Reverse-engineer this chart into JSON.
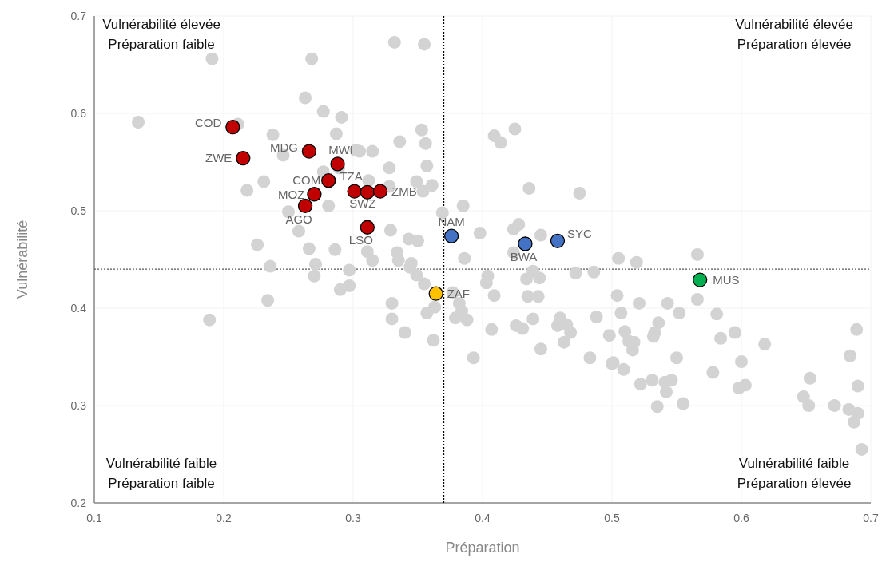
{
  "chart_data": {
    "type": "scatter",
    "xlabel": "Préparation",
    "ylabel": "Vulnérabilité",
    "xlim": [
      0.1,
      0.7
    ],
    "xticks": [
      0.1,
      0.2,
      0.3,
      0.4,
      0.5,
      0.6,
      0.7
    ],
    "ylim": [
      0.2,
      0.7
    ],
    "yticks": [
      0.2,
      0.3,
      0.4,
      0.5,
      0.6,
      0.7
    ],
    "grid": true,
    "marker": "circle",
    "series": [
      {
        "color": "#d3d3d3",
        "x": [
          0.191,
          0.268,
          0.263,
          0.134,
          0.211,
          0.277,
          0.291,
          0.238,
          0.287,
          0.246,
          0.302,
          0.277,
          0.289,
          0.231,
          0.218,
          0.281,
          0.25,
          0.258,
          0.226,
          0.266,
          0.286,
          0.332,
          0.355,
          0.353,
          0.336,
          0.356,
          0.305,
          0.315,
          0.328,
          0.357,
          0.312,
          0.328,
          0.349,
          0.361,
          0.354,
          0.409,
          0.414,
          0.425,
          0.436,
          0.475,
          0.385,
          0.369,
          0.329,
          0.398,
          0.424,
          0.428,
          0.445,
          0.343,
          0.35,
          0.311,
          0.334,
          0.386,
          0.424,
          0.315,
          0.335,
          0.345,
          0.505,
          0.519,
          0.566,
          0.236,
          0.271,
          0.27,
          0.297,
          0.29,
          0.297,
          0.234,
          0.189,
          0.344,
          0.349,
          0.355,
          0.404,
          0.403,
          0.439,
          0.434,
          0.444,
          0.472,
          0.486,
          0.33,
          0.363,
          0.357,
          0.377,
          0.382,
          0.409,
          0.435,
          0.443,
          0.33,
          0.34,
          0.362,
          0.379,
          0.384,
          0.388,
          0.393,
          0.407,
          0.426,
          0.431,
          0.439,
          0.445,
          0.46,
          0.458,
          0.465,
          0.468,
          0.463,
          0.488,
          0.483,
          0.498,
          0.5,
          0.504,
          0.521,
          0.543,
          0.566,
          0.507,
          0.552,
          0.581,
          0.51,
          0.513,
          0.517,
          0.516,
          0.536,
          0.533,
          0.532,
          0.584,
          0.595,
          0.618,
          0.501,
          0.509,
          0.55,
          0.578,
          0.6,
          0.522,
          0.531,
          0.541,
          0.546,
          0.542,
          0.535,
          0.555,
          0.598,
          0.603,
          0.653,
          0.648,
          0.652,
          0.672,
          0.683,
          0.69,
          0.687,
          0.689,
          0.684,
          0.69,
          0.693
        ],
        "values": [
          0.656,
          0.656,
          0.616,
          0.591,
          0.589,
          0.602,
          0.596,
          0.578,
          0.579,
          0.557,
          0.562,
          0.54,
          0.544,
          0.53,
          0.521,
          0.505,
          0.499,
          0.479,
          0.465,
          0.461,
          0.46,
          0.673,
          0.671,
          0.583,
          0.571,
          0.569,
          0.561,
          0.561,
          0.544,
          0.546,
          0.531,
          0.525,
          0.53,
          0.526,
          0.52,
          0.577,
          0.57,
          0.584,
          0.523,
          0.518,
          0.505,
          0.498,
          0.48,
          0.477,
          0.481,
          0.486,
          0.475,
          0.471,
          0.469,
          0.458,
          0.457,
          0.451,
          0.457,
          0.449,
          0.449,
          0.446,
          0.451,
          0.447,
          0.455,
          0.443,
          0.445,
          0.433,
          0.439,
          0.419,
          0.423,
          0.408,
          0.388,
          0.442,
          0.434,
          0.425,
          0.433,
          0.426,
          0.438,
          0.43,
          0.431,
          0.436,
          0.437,
          0.405,
          0.401,
          0.395,
          0.416,
          0.405,
          0.413,
          0.412,
          0.412,
          0.389,
          0.375,
          0.367,
          0.39,
          0.397,
          0.388,
          0.349,
          0.378,
          0.382,
          0.379,
          0.389,
          0.358,
          0.39,
          0.382,
          0.383,
          0.375,
          0.365,
          0.391,
          0.349,
          0.372,
          0.343,
          0.413,
          0.405,
          0.405,
          0.409,
          0.395,
          0.395,
          0.394,
          0.376,
          0.366,
          0.365,
          0.357,
          0.385,
          0.375,
          0.371,
          0.369,
          0.375,
          0.363,
          0.344,
          0.337,
          0.349,
          0.334,
          0.345,
          0.322,
          0.326,
          0.324,
          0.326,
          0.314,
          0.299,
          0.302,
          0.318,
          0.321,
          0.328,
          0.309,
          0.3,
          0.3,
          0.296,
          0.292,
          0.283,
          0.378,
          0.351,
          0.32,
          0.255
        ]
      },
      {
        "color": "#c00000",
        "x": [
          0.207,
          0.215,
          0.266,
          0.288,
          0.281,
          0.301,
          0.27,
          0.263,
          0.311,
          0.321,
          0.311
        ],
        "values": [
          0.586,
          0.554,
          0.561,
          0.548,
          0.531,
          0.52,
          0.517,
          0.505,
          0.519,
          0.52,
          0.483
        ]
      },
      {
        "color": "#4472c4",
        "x": [
          0.376,
          0.433,
          0.458
        ],
        "values": [
          0.474,
          0.466,
          0.469
        ]
      },
      {
        "color": "#ffc000",
        "x": [
          0.364
        ],
        "values": [
          0.415
        ]
      },
      {
        "color": "#00b050",
        "x": [
          0.568
        ],
        "values": [
          0.429
        ]
      }
    ],
    "ref_lines": [
      {
        "axis": "x",
        "value": 0.37,
        "color": "#000000",
        "line_style": "dotted"
      },
      {
        "axis": "y",
        "value": 0.44,
        "color": "#555555",
        "line_style": "dotted"
      }
    ],
    "annotations": [
      "Vulnérabilité élevée\nPréparation faible",
      "Vulnérabilité élevée\nPréparation élevée",
      "Vulnérabilité faible\nPréparation faible",
      "Vulnérabilité faible\nPréparation élevée",
      {
        "text": "COD",
        "x": 0.207,
        "y": 0.586
      },
      {
        "text": "ZWE",
        "x": 0.215,
        "y": 0.554
      },
      {
        "text": "MDG",
        "x": 0.266,
        "y": 0.561
      },
      {
        "text": "MWI",
        "x": 0.288,
        "y": 0.548
      },
      {
        "text": "COM",
        "x": 0.281,
        "y": 0.531
      },
      {
        "text": "TZA",
        "x": 0.301,
        "y": 0.52
      },
      {
        "text": "MOZ",
        "x": 0.27,
        "y": 0.517
      },
      {
        "text": "AGO",
        "x": 0.263,
        "y": 0.505
      },
      {
        "text": "SWZ",
        "x": 0.311,
        "y": 0.519
      },
      {
        "text": "ZMB",
        "x": 0.321,
        "y": 0.52
      },
      {
        "text": "LSO",
        "x": 0.311,
        "y": 0.483
      },
      {
        "text": "NAM",
        "x": 0.376,
        "y": 0.474
      },
      {
        "text": "BWA",
        "x": 0.433,
        "y": 0.466
      },
      {
        "text": "SYC",
        "x": 0.458,
        "y": 0.469
      },
      {
        "text": "ZAF",
        "x": 0.364,
        "y": 0.415
      },
      {
        "text": "MUS",
        "x": 0.568,
        "y": 0.429
      }
    ]
  }
}
